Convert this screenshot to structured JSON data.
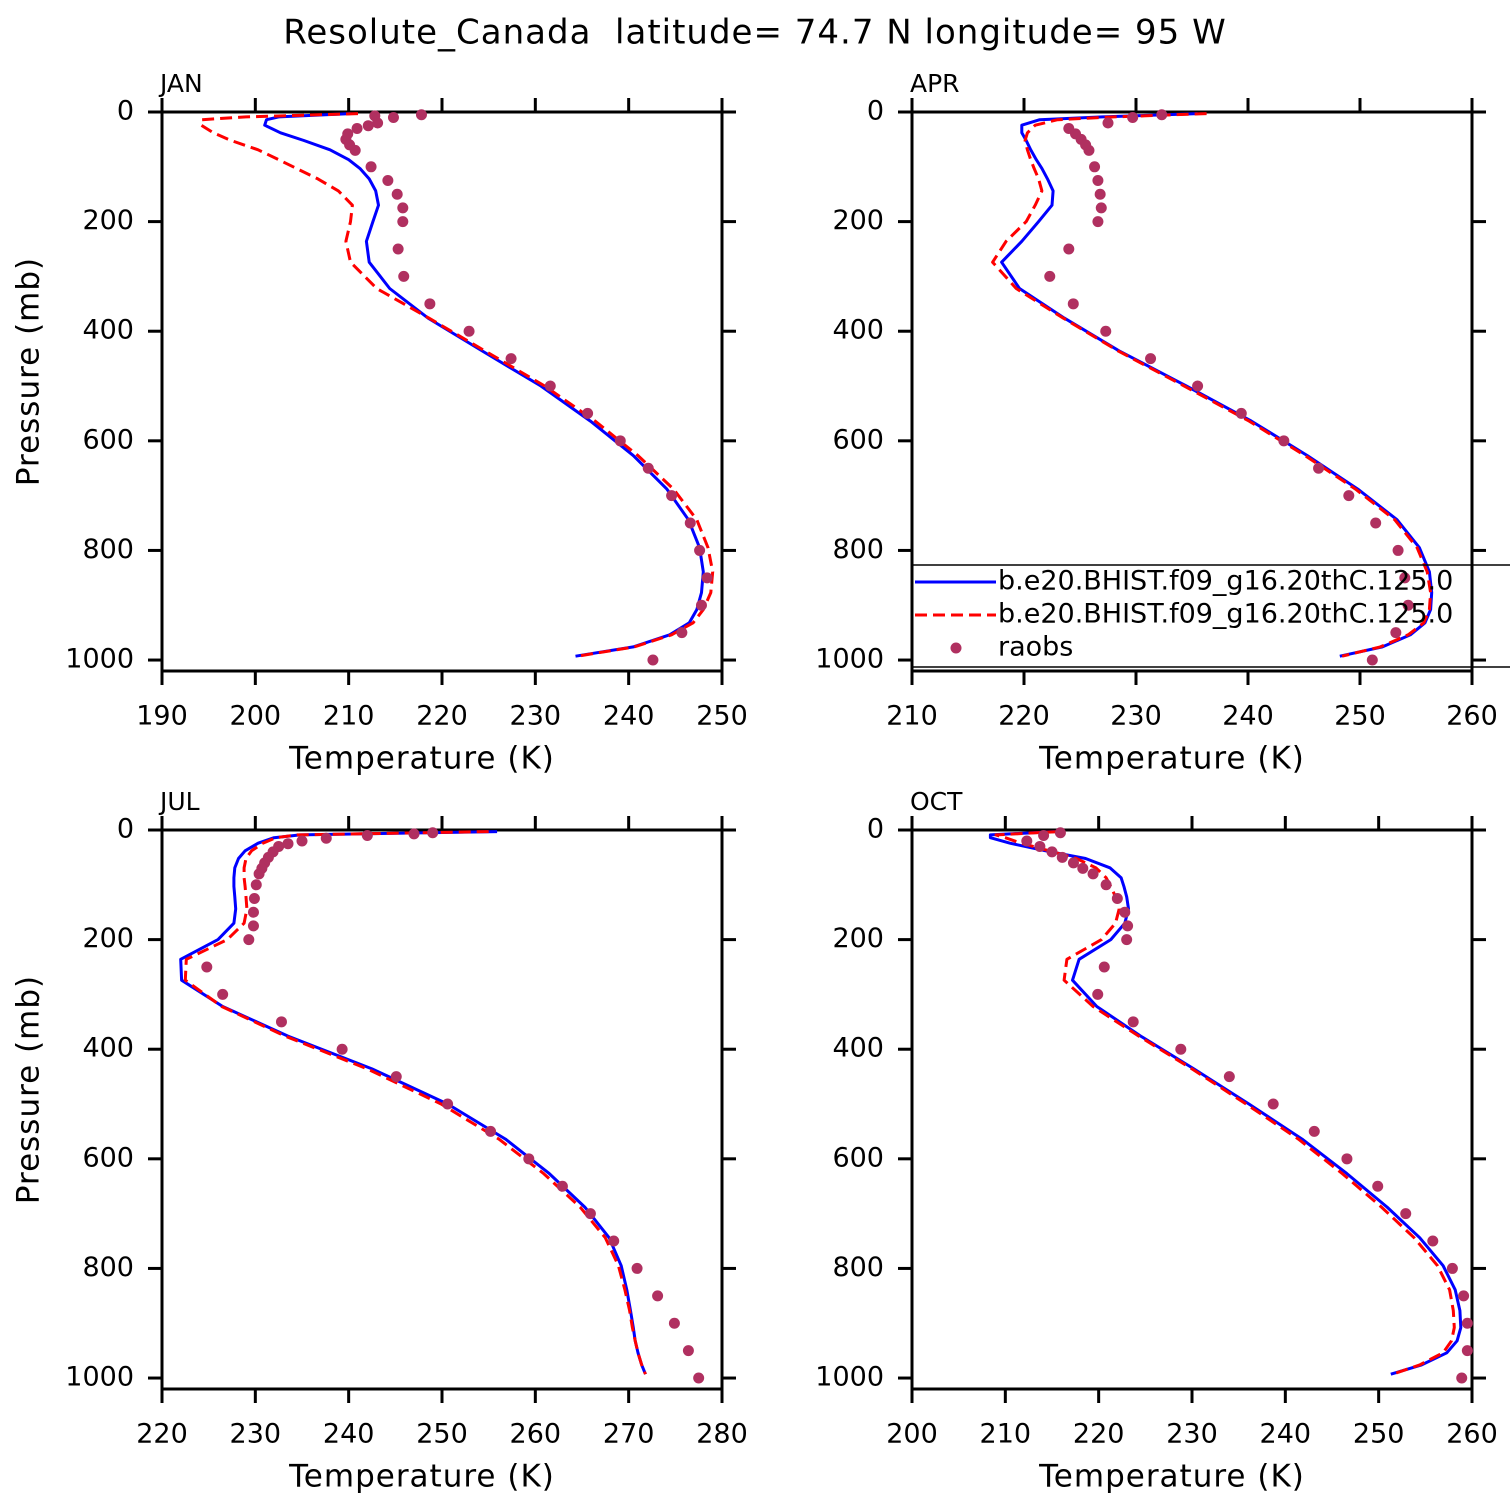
{
  "title": "Resolute_Canada  latitude= 74.7 N longitude= 95 W",
  "chart_data": [
    {
      "type": "line",
      "title": "JAN",
      "xlabel": "Temperature (K)",
      "ylabel": "Pressure (mb)",
      "xlim": [
        190,
        250
      ],
      "xticks": [
        190,
        200,
        210,
        220,
        230,
        240,
        250
      ],
      "ylim": [
        0,
        1020
      ],
      "yticks": [
        0,
        200,
        400,
        600,
        800,
        1000
      ],
      "y_inverted": true,
      "series": [
        {
          "color": "#0000ff",
          "style": "solid",
          "x": [
            210.2,
            202.5,
            201.2,
            201.0,
            202.7,
            205.2,
            208.0,
            210.0,
            211.2,
            212.2,
            212.9,
            213.2,
            212.6,
            211.9,
            212.2,
            214.4,
            218.5,
            224.3,
            230.6,
            235.9,
            240.5,
            244.1,
            246.4,
            247.6,
            248.0,
            247.8,
            247.3,
            246.5,
            244.4,
            240.5,
            234.3
          ],
          "values": [
            3,
            9,
            14,
            24,
            38,
            52,
            69,
            87,
            103,
            122,
            144,
            170,
            200,
            236,
            274,
            322,
            376,
            436,
            500,
            564,
            627,
            688,
            744,
            795,
            839,
            877,
            908,
            932,
            954,
            976,
            993
          ]
        },
        {
          "color": "#ff0000",
          "style": "dashed",
          "x": [
            211.0,
            199.0,
            194.3,
            194.2,
            195.5,
            197.4,
            200.3,
            202.5,
            204.4,
            206.7,
            208.9,
            210.4,
            210.2,
            209.7,
            210.2,
            213.0,
            218.6,
            224.6,
            231.0,
            236.4,
            241.0,
            244.8,
            247.3,
            248.5,
            249.0,
            248.8,
            248.0,
            246.9,
            244.6,
            240.6,
            234.5
          ],
          "values": [
            3,
            9,
            14,
            24,
            38,
            52,
            69,
            87,
            103,
            122,
            144,
            170,
            200,
            236,
            274,
            322,
            376,
            436,
            500,
            564,
            627,
            688,
            744,
            795,
            839,
            877,
            908,
            932,
            954,
            976,
            993
          ]
        },
        {
          "color": "#b03060",
          "style": "markers",
          "x": [
            217.8,
            212.8,
            214.8,
            213.1,
            212.1,
            210.9,
            209.9,
            209.7,
            210.1,
            210.7,
            212.4,
            214.2,
            215.2,
            215.8,
            215.8,
            215.3,
            215.9,
            218.7,
            222.9,
            227.4,
            231.6,
            235.6,
            239.1,
            242.1,
            244.6,
            246.6,
            247.6,
            248.4,
            247.8,
            245.7,
            242.6
          ],
          "values": [
            5,
            7,
            10,
            20,
            25,
            30,
            40,
            50,
            60,
            70,
            100,
            125,
            150,
            175,
            200,
            250,
            300,
            350,
            400,
            450,
            500,
            550,
            600,
            650,
            700,
            750,
            800,
            850,
            900,
            950,
            1000
          ]
        }
      ]
    },
    {
      "type": "line",
      "title": "APR",
      "xlabel": "Temperature (K)",
      "xlim": [
        210,
        260
      ],
      "xticks": [
        210,
        220,
        230,
        240,
        250,
        260
      ],
      "ylim": [
        0,
        1020
      ],
      "yticks": [
        0,
        200,
        400,
        600,
        800,
        1000
      ],
      "y_inverted": true,
      "legend": "lower-left",
      "series": [
        {
          "name": "b.e20.BHIST.f09_g16.20thC.125.0",
          "color": "#0000ff",
          "style": "solid",
          "x": [
            235.5,
            227.0,
            221.4,
            219.8,
            219.8,
            220.2,
            220.6,
            221.1,
            221.6,
            222.1,
            222.6,
            222.5,
            221.3,
            219.8,
            218.0,
            219.6,
            223.6,
            228.5,
            234.5,
            240.3,
            245.3,
            249.8,
            253.3,
            255.3,
            256.2,
            256.4,
            256.3,
            255.8,
            254.5,
            252.0,
            248.2
          ],
          "values": [
            3,
            9,
            14,
            24,
            38,
            52,
            69,
            87,
            103,
            122,
            144,
            170,
            200,
            236,
            274,
            322,
            376,
            436,
            500,
            564,
            627,
            688,
            744,
            795,
            839,
            877,
            908,
            932,
            954,
            976,
            993
          ]
        },
        {
          "name": "b.e20.BHIST.f09_g16.20thC.125.0",
          "color": "#ff0000",
          "style": "dashed",
          "x": [
            236.3,
            228.0,
            223.0,
            221.0,
            220.3,
            220.1,
            220.3,
            220.6,
            220.9,
            221.3,
            221.6,
            221.0,
            220.2,
            218.4,
            217.2,
            219.3,
            223.5,
            228.4,
            234.3,
            240.1,
            245.1,
            249.6,
            253.1,
            255.1,
            256.0,
            256.3,
            256.2,
            255.7,
            254.3,
            251.8,
            248.4
          ],
          "values": [
            3,
            9,
            14,
            24,
            38,
            52,
            69,
            87,
            103,
            122,
            144,
            170,
            200,
            236,
            274,
            322,
            376,
            436,
            500,
            564,
            627,
            688,
            744,
            795,
            839,
            877,
            908,
            932,
            954,
            976,
            993
          ]
        },
        {
          "name": "raobs",
          "color": "#b03060",
          "style": "markers",
          "x": [
            232.3,
            229.7,
            227.5,
            224.0,
            224.6,
            225.1,
            225.5,
            225.8,
            226.3,
            226.6,
            226.8,
            226.9,
            226.6,
            224.0,
            222.3,
            224.4,
            227.3,
            231.3,
            235.5,
            239.4,
            243.2,
            246.3,
            249.0,
            251.4,
            253.4,
            254.0,
            254.3,
            253.2,
            251.1
          ],
          "values": [
            5,
            10,
            20,
            30,
            40,
            50,
            60,
            70,
            100,
            125,
            150,
            175,
            200,
            250,
            300,
            350,
            400,
            450,
            500,
            550,
            600,
            650,
            700,
            750,
            800,
            850,
            900,
            950,
            1000
          ]
        }
      ]
    },
    {
      "type": "line",
      "title": "JUL",
      "xlabel": "Temperature (K)",
      "ylabel": "Pressure (mb)",
      "xlim": [
        220,
        280
      ],
      "xticks": [
        220,
        230,
        240,
        250,
        260,
        270,
        280
      ],
      "ylim": [
        0,
        1020
      ],
      "yticks": [
        0,
        200,
        400,
        600,
        800,
        1000
      ],
      "y_inverted": true,
      "series": [
        {
          "color": "#0000ff",
          "style": "solid",
          "x": [
            255.9,
            234.8,
            232.0,
            230.3,
            228.9,
            228.2,
            227.8,
            227.7,
            227.7,
            227.8,
            227.9,
            227.7,
            226.0,
            222.0,
            222.1,
            226.5,
            233.5,
            242.5,
            250.6,
            256.8,
            261.5,
            265.3,
            267.9,
            269.2,
            269.8,
            270.2,
            270.5,
            270.7,
            271.0,
            271.4,
            271.8
          ],
          "values": [
            3,
            9,
            14,
            24,
            38,
            52,
            69,
            87,
            103,
            122,
            144,
            170,
            200,
            236,
            274,
            322,
            376,
            436,
            500,
            564,
            627,
            688,
            744,
            795,
            839,
            877,
            908,
            932,
            954,
            976,
            993
          ]
        },
        {
          "color": "#ff0000",
          "style": "dashed",
          "x": [
            255.0,
            234.5,
            232.2,
            230.8,
            229.6,
            229.0,
            228.8,
            228.8,
            228.9,
            229.0,
            229.1,
            228.8,
            227.0,
            222.6,
            222.5,
            226.4,
            233.2,
            242.0,
            249.9,
            256.1,
            260.9,
            264.8,
            267.5,
            268.9,
            269.6,
            270.1,
            270.4,
            270.7,
            271.0,
            271.4,
            271.8
          ],
          "values": [
            3,
            9,
            14,
            24,
            38,
            52,
            69,
            87,
            103,
            122,
            144,
            170,
            200,
            236,
            274,
            322,
            376,
            436,
            500,
            564,
            627,
            688,
            744,
            795,
            839,
            877,
            908,
            932,
            954,
            976,
            993
          ]
        },
        {
          "color": "#b03060",
          "style": "markers",
          "x": [
            249.0,
            247.0,
            242.0,
            237.6,
            235.0,
            233.5,
            232.5,
            231.9,
            231.4,
            231.0,
            230.7,
            230.4,
            230.1,
            229.9,
            229.8,
            229.8,
            229.3,
            224.8,
            226.5,
            232.8,
            239.3,
            245.1,
            250.6,
            255.2,
            259.3,
            262.9,
            265.9,
            268.4,
            270.9,
            273.1,
            274.9,
            276.4,
            277.5
          ],
          "values": [
            5,
            7,
            10,
            15,
            20,
            25,
            30,
            40,
            50,
            60,
            70,
            80,
            100,
            125,
            150,
            175,
            200,
            250,
            300,
            350,
            400,
            450,
            500,
            550,
            600,
            650,
            700,
            750,
            800,
            850,
            900,
            950,
            1000
          ]
        }
      ]
    },
    {
      "type": "line",
      "title": "OCT",
      "xlabel": "Temperature (K)",
      "xlim": [
        200,
        260
      ],
      "xticks": [
        200,
        210,
        220,
        230,
        240,
        250,
        260
      ],
      "ylim": [
        0,
        1020
      ],
      "yticks": [
        0,
        200,
        400,
        600,
        800,
        1000
      ],
      "y_inverted": true,
      "series": [
        {
          "color": "#0000ff",
          "style": "solid",
          "x": [
            215.3,
            208.4,
            208.4,
            210.5,
            214.3,
            218.6,
            221.2,
            222.4,
            222.7,
            223.0,
            223.2,
            222.8,
            221.3,
            217.9,
            217.2,
            219.8,
            224.5,
            230.2,
            236.1,
            241.8,
            246.6,
            250.9,
            254.4,
            256.9,
            258.2,
            258.7,
            258.8,
            258.4,
            257.3,
            254.6,
            251.3
          ],
          "values": [
            3,
            9,
            14,
            24,
            38,
            52,
            69,
            87,
            103,
            122,
            144,
            170,
            200,
            236,
            274,
            322,
            376,
            436,
            500,
            564,
            627,
            688,
            744,
            795,
            839,
            877,
            908,
            932,
            954,
            976,
            993
          ]
        },
        {
          "color": "#ff0000",
          "style": "dashed",
          "x": [
            215.7,
            209.0,
            210.0,
            211.7,
            214.7,
            217.6,
            219.7,
            220.8,
            221.3,
            221.8,
            222.2,
            221.8,
            220.3,
            216.6,
            216.3,
            219.4,
            224.3,
            230.0,
            235.8,
            241.4,
            246.1,
            250.3,
            253.8,
            256.3,
            257.6,
            258.0,
            258.1,
            257.8,
            256.9,
            254.4,
            251.5
          ],
          "values": [
            3,
            9,
            14,
            24,
            38,
            52,
            69,
            87,
            103,
            122,
            144,
            170,
            200,
            236,
            274,
            322,
            376,
            436,
            500,
            564,
            627,
            688,
            744,
            795,
            839,
            877,
            908,
            932,
            954,
            976,
            993
          ]
        },
        {
          "color": "#b03060",
          "style": "markers",
          "x": [
            215.9,
            214.1,
            212.3,
            213.7,
            215.0,
            216.1,
            217.3,
            218.3,
            219.4,
            220.8,
            222.0,
            222.8,
            223.1,
            223.0,
            220.6,
            219.9,
            223.7,
            228.8,
            234.0,
            238.7,
            243.1,
            246.6,
            249.9,
            252.9,
            255.8,
            257.9,
            259.1,
            259.5,
            259.5,
            258.9
          ],
          "values": [
            5,
            10,
            20,
            30,
            40,
            50,
            60,
            70,
            80,
            100,
            125,
            150,
            175,
            200,
            250,
            300,
            350,
            400,
            450,
            500,
            550,
            600,
            650,
            700,
            750,
            800,
            850,
            900,
            950,
            1000
          ]
        }
      ]
    }
  ]
}
